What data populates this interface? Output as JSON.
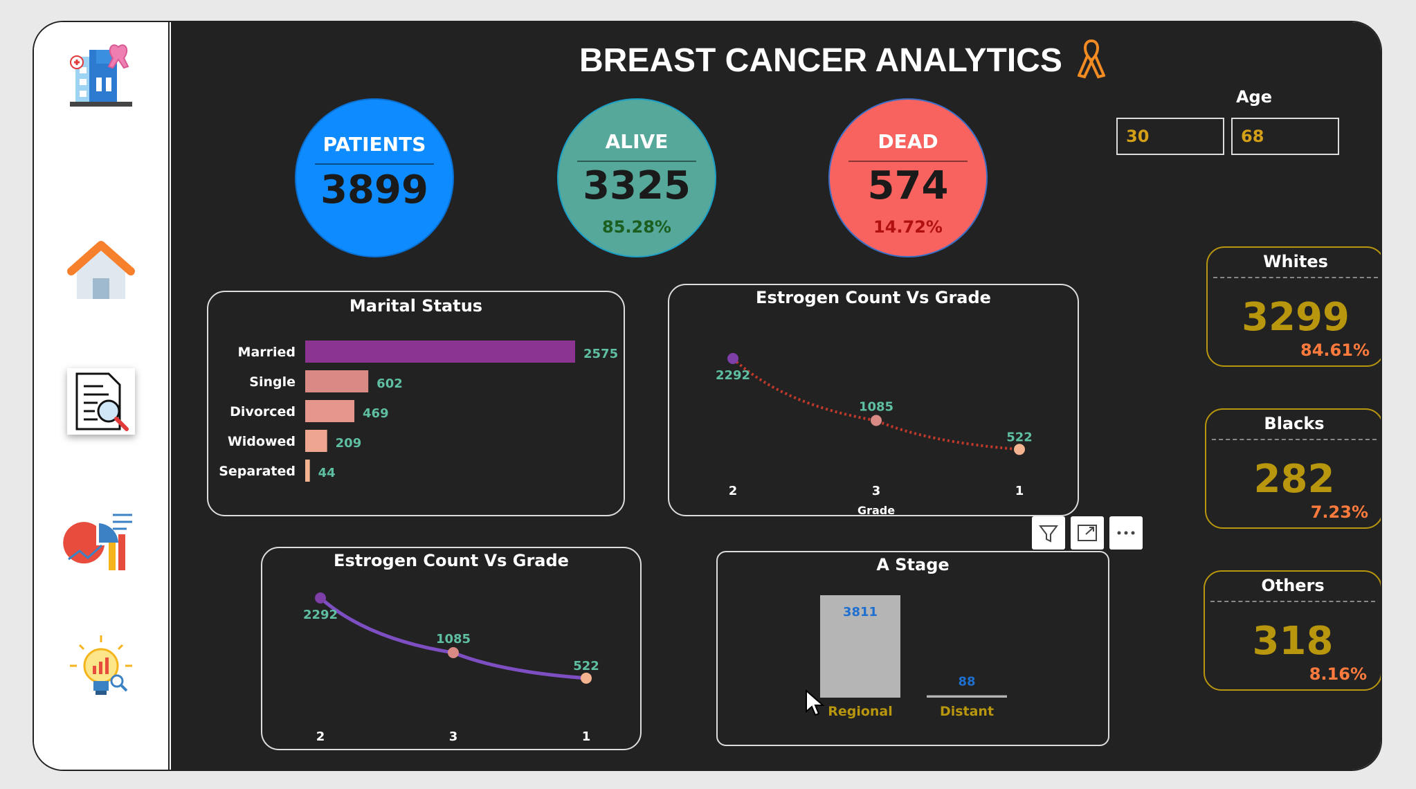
{
  "title": "BREAST CANCER ANALYTICS",
  "age_filter": {
    "label": "Age",
    "min": "30",
    "max": "68"
  },
  "kpis": {
    "patients": {
      "label": "PATIENTS",
      "value": "3899"
    },
    "alive": {
      "label": "ALIVE",
      "value": "3325",
      "pct": "85.28%"
    },
    "dead": {
      "label": "DEAD",
      "value": "574",
      "pct": "14.72%"
    }
  },
  "race_cards": [
    {
      "label": "Whites",
      "value": "3299",
      "pct": "84.61%"
    },
    {
      "label": "Blacks",
      "value": "282",
      "pct": "7.23%"
    },
    {
      "label": "Others",
      "value": "318",
      "pct": "8.16%"
    }
  ],
  "nav": [
    "hospital-icon",
    "home-icon",
    "report-search-icon",
    "chart-analytics-icon",
    "insight-bulb-icon"
  ],
  "visual_toolbar": [
    "filter-icon",
    "focus-mode-icon",
    "more-options-icon"
  ],
  "colors": {
    "patients": "#0d8bff",
    "alive": "#55a89a",
    "dead": "#f8635f",
    "gold": "#b8960d",
    "married": "#8b3492",
    "single": "#d98a84",
    "divorced": "#e5978d",
    "widowed": "#efa690",
    "separated": "#f4b391",
    "line1": "#c0392b",
    "line2": "#7e4fc3",
    "stage": "#b5b5b5"
  },
  "chart_data": [
    {
      "type": "bar",
      "title": "Marital Status",
      "orientation": "horizontal",
      "categories": [
        "Married",
        "Single",
        "Divorced",
        "Widowed",
        "Separated"
      ],
      "values": [
        2575,
        602,
        469,
        209,
        44
      ]
    },
    {
      "type": "line",
      "title": "Estrogen Count Vs Grade",
      "xlabel": "Grade",
      "categories": [
        "2",
        "3",
        "1"
      ],
      "values": [
        2292,
        1085,
        522
      ],
      "line_style": "dotted"
    },
    {
      "type": "line",
      "title": "Estrogen Count Vs Grade",
      "xlabel": "",
      "categories": [
        "2",
        "3",
        "1"
      ],
      "values": [
        2292,
        1085,
        522
      ],
      "line_style": "solid"
    },
    {
      "type": "bar",
      "title": "A Stage",
      "categories": [
        "Regional",
        "Distant"
      ],
      "values": [
        3811,
        88
      ]
    }
  ]
}
